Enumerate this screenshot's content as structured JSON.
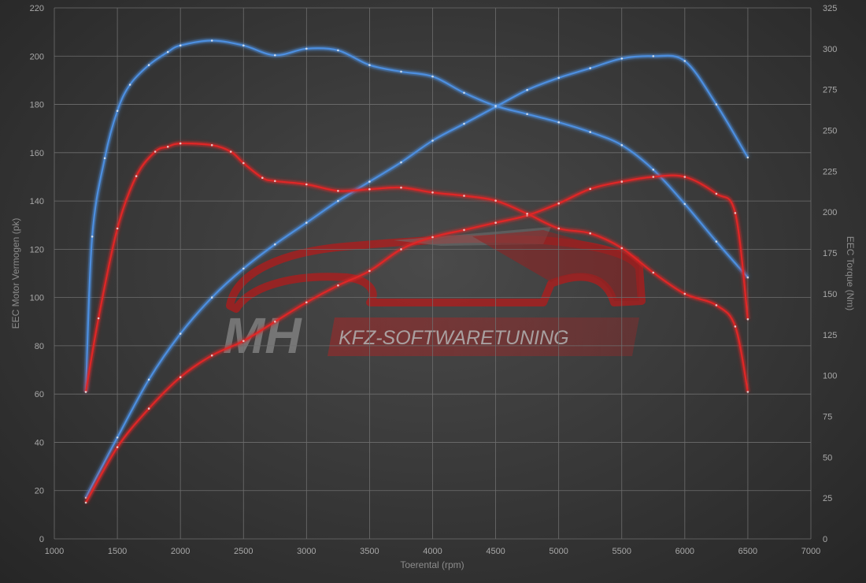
{
  "chart_data": {
    "type": "line",
    "xlabel": "Toerental (rpm)",
    "ylabel_left": "EEC Motor Vermogen (pk)",
    "ylabel_right": "EEC Torque (Nm)",
    "xlim": [
      1000,
      7000
    ],
    "ylim_left": [
      0,
      220
    ],
    "ylim_right": [
      0,
      325
    ],
    "x_ticks": [
      1000,
      1500,
      2000,
      2500,
      3000,
      3500,
      4000,
      4500,
      5000,
      5500,
      6000,
      6500,
      7000
    ],
    "y_left_ticks": [
      0,
      20,
      40,
      60,
      80,
      100,
      120,
      140,
      160,
      180,
      200,
      220
    ],
    "y_right_ticks": [
      0,
      25,
      50,
      75,
      100,
      125,
      150,
      175,
      200,
      225,
      250,
      275,
      300,
      325
    ],
    "grid": true,
    "watermark": {
      "brand": "MH",
      "tagline": "KFZ-SOFTWARETUNING"
    },
    "series": [
      {
        "color": "#4d8fe0",
        "axis": "left",
        "x": [
          1250,
          1500,
          1750,
          2000,
          2250,
          2500,
          2750,
          3000,
          3250,
          3500,
          3750,
          4000,
          4250,
          4500,
          4750,
          5000,
          5250,
          5500,
          5750,
          6000,
          6250,
          6500
        ],
        "values": [
          17,
          42,
          66,
          85,
          100,
          112,
          122,
          131,
          140,
          148,
          156,
          165,
          172,
          179,
          186,
          191,
          195,
          199,
          200,
          198,
          180,
          158
        ]
      },
      {
        "color": "#4d8fe0",
        "axis": "right",
        "x": [
          1250,
          1300,
          1400,
          1500,
          1600,
          1750,
          1900,
          2000,
          2250,
          2500,
          2750,
          3000,
          3250,
          3500,
          3750,
          4000,
          4250,
          4500,
          4750,
          5000,
          5250,
          5500,
          5750,
          6000,
          6250,
          6500
        ],
        "values": [
          90,
          185,
          233,
          262,
          278,
          290,
          298,
          302,
          305,
          302,
          296,
          300,
          299,
          290,
          286,
          283,
          273,
          265,
          260,
          255,
          249,
          241,
          226,
          205,
          182,
          160
        ]
      },
      {
        "color": "#e02828",
        "axis": "left",
        "x": [
          1250,
          1500,
          1750,
          2000,
          2250,
          2500,
          2750,
          3000,
          3250,
          3500,
          3750,
          4000,
          4250,
          4500,
          4750,
          5000,
          5250,
          5500,
          5750,
          6000,
          6250,
          6400,
          6500
        ],
        "values": [
          15,
          38,
          54,
          67,
          76,
          82,
          90,
          98,
          105,
          111,
          120,
          125,
          128,
          131,
          134,
          139,
          145,
          148,
          150,
          150,
          143,
          135,
          91
        ]
      },
      {
        "color": "#e02828",
        "axis": "right",
        "x": [
          1250,
          1350,
          1500,
          1650,
          1800,
          1900,
          2000,
          2250,
          2400,
          2500,
          2650,
          2750,
          3000,
          3250,
          3500,
          3750,
          4000,
          4250,
          4500,
          4750,
          5000,
          5250,
          5500,
          5750,
          6000,
          6250,
          6400,
          6500
        ],
        "values": [
          90,
          135,
          190,
          222,
          237,
          240,
          242,
          241,
          237,
          230,
          221,
          219,
          217,
          213,
          214,
          215,
          212,
          210,
          207,
          199,
          190,
          187,
          178,
          163,
          150,
          143,
          130,
          90
        ]
      }
    ]
  }
}
